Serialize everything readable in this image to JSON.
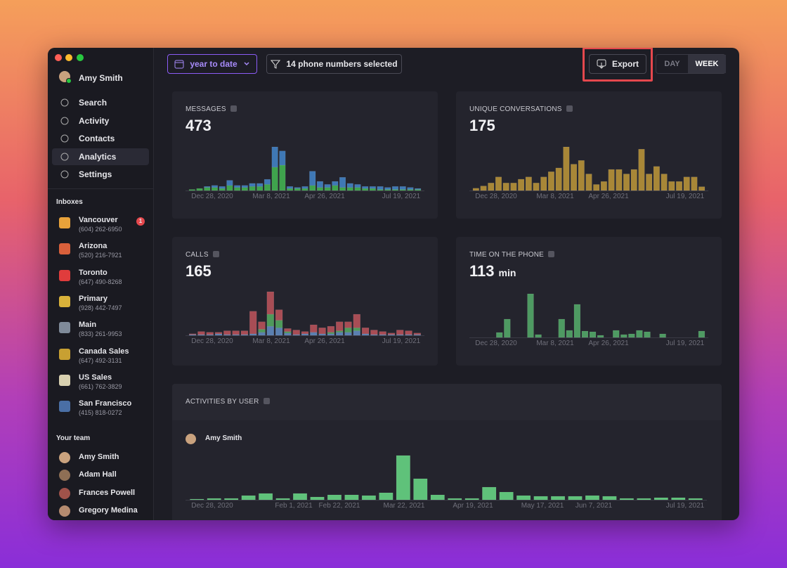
{
  "sidebar": {
    "user": "Amy Smith",
    "nav": [
      "Search",
      "Activity",
      "Contacts",
      "Analytics",
      "Settings"
    ],
    "selected": 3,
    "inboxes_heading": "Inboxes",
    "inboxes": [
      {
        "name": "Vancouver",
        "phone": "(604) 262-6950",
        "badge": 1
      },
      {
        "name": "Arizona",
        "phone": "(520) 216-7921"
      },
      {
        "name": "Toronto",
        "phone": "(647) 490-8268"
      },
      {
        "name": "Primary",
        "phone": "(928) 442-7497"
      },
      {
        "name": "Main",
        "phone": "(833) 261-9953"
      },
      {
        "name": "Canada Sales",
        "phone": "(647) 492-3131"
      },
      {
        "name": "US Sales",
        "phone": "(661) 762-3829"
      },
      {
        "name": "San Francisco",
        "phone": "(415) 818-0272"
      }
    ],
    "team_heading": "Your team",
    "team": [
      "Amy Smith",
      "Adam Hall",
      "Frances Powell",
      "Gregory Medina"
    ]
  },
  "toolbar": {
    "date_range": "year to date",
    "filter": "14 phone numbers selected",
    "export": "Export",
    "toggle": [
      "DAY",
      "WEEK"
    ],
    "toggle_selected": 1
  },
  "cards": [
    {
      "title": "MESSAGES",
      "total": 473,
      "type": "bar",
      "x_labels": [
        "Dec 28, 2020",
        "Mar 8, 2021",
        "Apr 26, 2021",
        "Jul 19, 2021"
      ],
      "series": [
        {
          "color": "#3fa34d",
          "values": [
            1,
            2,
            3,
            3,
            2,
            5,
            3,
            3,
            4,
            4,
            6,
            23,
            25,
            2,
            2,
            2,
            5,
            3,
            3,
            5,
            3,
            3,
            3,
            2,
            2,
            1,
            1,
            1,
            1,
            1,
            1
          ]
        },
        {
          "color": "#3f78b5",
          "values": [
            0,
            0,
            1,
            2,
            2,
            5,
            2,
            2,
            3,
            3,
            5,
            20,
            14,
            2,
            1,
            2,
            14,
            6,
            3,
            4,
            10,
            4,
            3,
            2,
            2,
            3,
            2,
            3,
            3,
            2,
            1
          ]
        }
      ]
    },
    {
      "title": "UNIQUE CONVERSATIONS",
      "total": 175,
      "type": "bar",
      "x_labels": [
        "Dec 28, 2020",
        "Mar 8, 2021",
        "Apr 26, 2021",
        "Jul 19, 2021"
      ],
      "series": [
        {
          "color": "#a88737",
          "values": [
            3,
            6,
            10,
            18,
            10,
            10,
            15,
            18,
            10,
            18,
            25,
            30,
            58,
            35,
            40,
            22,
            8,
            12,
            28,
            28,
            22,
            28,
            55,
            22,
            32,
            22,
            12,
            12,
            18,
            18,
            5
          ]
        }
      ]
    },
    {
      "title": "CALLS",
      "total": 165,
      "type": "bar",
      "x_labels": [
        "Dec 28, 2020",
        "Mar 8, 2021",
        "Apr 26, 2021",
        "Jul 19, 2021"
      ],
      "series": [
        {
          "color": "#5a7fb0",
          "values": [
            1,
            1,
            1,
            2,
            1,
            1,
            1,
            2,
            4,
            12,
            10,
            3,
            1,
            2,
            4,
            2,
            2,
            4,
            4,
            6,
            2,
            1,
            1,
            1,
            1,
            1,
            1
          ]
        },
        {
          "color": "#4e9a5a",
          "values": [
            0,
            0,
            0,
            0,
            0,
            0,
            0,
            0,
            4,
            16,
            10,
            2,
            0,
            0,
            0,
            0,
            2,
            2,
            6,
            4,
            0,
            0,
            0,
            0,
            0,
            0,
            0
          ]
        },
        {
          "color": "#a84d55",
          "values": [
            1,
            4,
            3,
            2,
            5,
            5,
            5,
            30,
            10,
            30,
            14,
            4,
            6,
            3,
            10,
            8,
            8,
            12,
            8,
            18,
            8,
            6,
            4,
            2,
            6,
            5,
            2
          ]
        }
      ]
    },
    {
      "title": "TIME ON THE PHONE",
      "total": 113,
      "unit": "min",
      "type": "bar",
      "x_labels": [
        "Dec 28, 2020",
        "Mar 8, 2021",
        "Apr 26, 2021",
        "Jul 19, 2021"
      ],
      "series": [
        {
          "color": "#4e9a62",
          "values": [
            0,
            0,
            0,
            7,
            26,
            0,
            0,
            62,
            4,
            0,
            0,
            26,
            10,
            47,
            9,
            8,
            3,
            0,
            10,
            4,
            5,
            10,
            8,
            0,
            5,
            0,
            0,
            0,
            0,
            9
          ]
        }
      ]
    }
  ],
  "activities": {
    "title": "ACTIVITIES BY USER",
    "user": "Amy Smith",
    "type": "bar",
    "x_labels": [
      "Dec 28, 2020",
      "Feb 1, 2021",
      "Feb 22, 2021",
      "Mar 22, 2021",
      "Apr 19, 2021",
      "May 17, 2021",
      "Jun 7, 2021",
      "Jul 19, 2021"
    ],
    "series": [
      {
        "color": "#5fc27a",
        "values": [
          1,
          2,
          2,
          6,
          9,
          2,
          9,
          4,
          7,
          7,
          6,
          10,
          63,
          30,
          7,
          2,
          2,
          18,
          11,
          6,
          5,
          5,
          5,
          6,
          5,
          2,
          2,
          3,
          3,
          2
        ]
      }
    ]
  }
}
